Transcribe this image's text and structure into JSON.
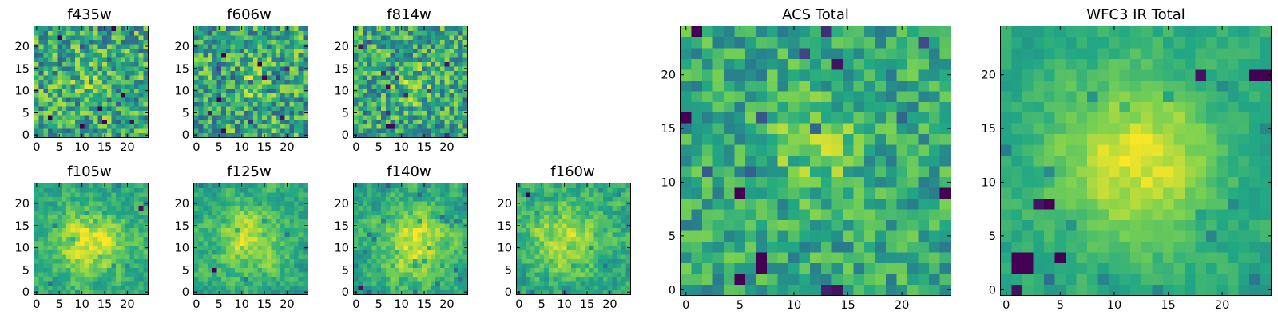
{
  "colormap": "viridis",
  "colormap_stops": [
    "#440154",
    "#414487",
    "#2a788e",
    "#22a884",
    "#7ad151",
    "#fde725"
  ],
  "chart_data": [
    {
      "type": "heatmap",
      "id": "f435w",
      "title": "f435w",
      "grid_size": [
        25,
        25
      ],
      "xlim": [
        -0.5,
        24.5
      ],
      "ylim": [
        -0.5,
        24.5
      ],
      "xticks": [
        0,
        5,
        10,
        15,
        20
      ],
      "yticks": [
        0,
        5,
        10,
        15,
        20
      ],
      "value_range": [
        0,
        1
      ],
      "center": [
        12,
        12
      ],
      "extended": false,
      "peak": 0.1,
      "noise": 0.3,
      "seed": 11,
      "hot_pixels": [
        {
          "x": 17,
          "y": 24,
          "value": 0.0
        },
        {
          "x": 21,
          "y": 3,
          "value": 0.05
        }
      ]
    },
    {
      "type": "heatmap",
      "id": "f606w",
      "title": "f606w",
      "grid_size": [
        25,
        25
      ],
      "xlim": [
        -0.5,
        24.5
      ],
      "ylim": [
        -0.5,
        24.5
      ],
      "xticks": [
        0,
        5,
        10,
        15,
        20
      ],
      "yticks": [
        0,
        5,
        10,
        15,
        20
      ],
      "value_range": [
        0,
        1
      ],
      "center": [
        12,
        12
      ],
      "extended": false,
      "peak": 0.1,
      "noise": 0.3,
      "seed": 23,
      "hot_pixels": [
        {
          "x": 14,
          "y": 16,
          "value": 0.0
        },
        {
          "x": 15,
          "y": 13,
          "value": 0.02
        }
      ]
    },
    {
      "type": "heatmap",
      "id": "f814w",
      "title": "f814w",
      "grid_size": [
        25,
        25
      ],
      "xlim": [
        -0.5,
        24.5
      ],
      "ylim": [
        -0.5,
        24.5
      ],
      "xticks": [
        0,
        5,
        10,
        15,
        20
      ],
      "yticks": [
        0,
        5,
        10,
        15,
        20
      ],
      "value_range": [
        0,
        1
      ],
      "center": [
        13,
        11
      ],
      "extended": false,
      "peak": 0.15,
      "noise": 0.28,
      "seed": 37,
      "hot_pixels": [
        {
          "x": 7,
          "y": 2,
          "value": 0.0
        },
        {
          "x": 8,
          "y": 2,
          "value": 0.02
        }
      ]
    },
    {
      "type": "heatmap",
      "id": "f105w",
      "title": "f105w",
      "grid_size": [
        25,
        25
      ],
      "xlim": [
        -0.5,
        24.5
      ],
      "ylim": [
        -0.5,
        24.5
      ],
      "xticks": [
        0,
        5,
        10,
        15,
        20
      ],
      "yticks": [
        0,
        5,
        10,
        15,
        20
      ],
      "value_range": [
        0,
        1
      ],
      "center": [
        12,
        11
      ],
      "extended": true,
      "peak": 0.35,
      "noise": 0.2,
      "seed": 41,
      "hot_pixels": [
        {
          "x": 23,
          "y": 19,
          "value": 0.05
        }
      ]
    },
    {
      "type": "heatmap",
      "id": "f125w",
      "title": "f125w",
      "grid_size": [
        25,
        25
      ],
      "xlim": [
        -0.5,
        24.5
      ],
      "ylim": [
        -0.5,
        24.5
      ],
      "xticks": [
        0,
        5,
        10,
        15,
        20
      ],
      "yticks": [
        0,
        5,
        10,
        15,
        20
      ],
      "value_range": [
        0,
        1
      ],
      "center": [
        12,
        12
      ],
      "extended": true,
      "peak": 0.3,
      "noise": 0.2,
      "seed": 53,
      "hot_pixels": [
        {
          "x": 4,
          "y": 5,
          "value": 0.0
        }
      ]
    },
    {
      "type": "heatmap",
      "id": "f140w",
      "title": "f140w",
      "grid_size": [
        25,
        25
      ],
      "xlim": [
        -0.5,
        24.5
      ],
      "ylim": [
        -0.5,
        24.5
      ],
      "xticks": [
        0,
        5,
        10,
        15,
        20
      ],
      "yticks": [
        0,
        5,
        10,
        15,
        20
      ],
      "value_range": [
        0,
        1
      ],
      "center": [
        13,
        11
      ],
      "extended": true,
      "peak": 0.35,
      "noise": 0.2,
      "seed": 67,
      "hot_pixels": [
        {
          "x": 1,
          "y": 1,
          "value": 0.05
        }
      ]
    },
    {
      "type": "heatmap",
      "id": "f160w",
      "title": "f160w",
      "grid_size": [
        25,
        25
      ],
      "xlim": [
        -0.5,
        24.5
      ],
      "ylim": [
        -0.5,
        24.5
      ],
      "xticks": [
        0,
        5,
        10,
        15,
        20
      ],
      "yticks": [
        0,
        5,
        10,
        15,
        20
      ],
      "value_range": [
        0,
        1
      ],
      "center": [
        10,
        12
      ],
      "extended": true,
      "peak": 0.3,
      "noise": 0.22,
      "seed": 79,
      "hot_pixels": [
        {
          "x": 2,
          "y": 22,
          "value": 0.0
        }
      ]
    },
    {
      "type": "heatmap",
      "id": "acs-total",
      "title": "ACS Total",
      "grid_size": [
        25,
        25
      ],
      "xlim": [
        -0.5,
        24.5
      ],
      "ylim": [
        -0.5,
        24.5
      ],
      "xticks": [
        0,
        5,
        10,
        15,
        20
      ],
      "yticks": [
        0,
        5,
        10,
        15,
        20
      ],
      "value_range": [
        0,
        1
      ],
      "center": [
        12,
        13
      ],
      "extended": false,
      "peak": 0.2,
      "noise": 0.2,
      "seed": 97,
      "hot_pixels": [
        {
          "x": 1,
          "y": 24,
          "value": 0.0
        },
        {
          "x": 0,
          "y": 16,
          "value": 0.0
        },
        {
          "x": 5,
          "y": 9,
          "value": 0.0
        },
        {
          "x": 7,
          "y": 3,
          "value": 0.0
        },
        {
          "x": 7,
          "y": 2,
          "value": 0.0
        },
        {
          "x": 24,
          "y": 9,
          "value": 0.0
        },
        {
          "x": 14,
          "y": 21,
          "value": 0.05
        },
        {
          "x": 5,
          "y": 1,
          "value": 0.0
        }
      ]
    },
    {
      "type": "heatmap",
      "id": "wfc3-ir-total",
      "title": "WFC3 IR Total",
      "grid_size": [
        25,
        25
      ],
      "xlim": [
        -0.5,
        24.5
      ],
      "ylim": [
        -0.5,
        24.5
      ],
      "xticks": [
        0,
        5,
        10,
        15,
        20
      ],
      "yticks": [
        0,
        5,
        10,
        15,
        20
      ],
      "value_range": [
        0,
        1
      ],
      "center": [
        12,
        12
      ],
      "extended": true,
      "peak": 0.35,
      "noise": 0.12,
      "seed": 131,
      "hot_pixels": [
        {
          "x": 1,
          "y": 2,
          "value": 0.0
        },
        {
          "x": 2,
          "y": 2,
          "value": 0.0
        },
        {
          "x": 1,
          "y": 3,
          "value": 0.0
        },
        {
          "x": 2,
          "y": 3,
          "value": 0.0
        },
        {
          "x": 5,
          "y": 3,
          "value": 0.0
        },
        {
          "x": 4,
          "y": 8,
          "value": 0.0
        },
        {
          "x": 3,
          "y": 8,
          "value": 0.05
        },
        {
          "x": 23,
          "y": 20,
          "value": 0.0
        },
        {
          "x": 24,
          "y": 20,
          "value": 0.0
        },
        {
          "x": 18,
          "y": 20,
          "value": 0.05
        },
        {
          "x": 1,
          "y": 0,
          "value": 0.05
        }
      ]
    }
  ]
}
